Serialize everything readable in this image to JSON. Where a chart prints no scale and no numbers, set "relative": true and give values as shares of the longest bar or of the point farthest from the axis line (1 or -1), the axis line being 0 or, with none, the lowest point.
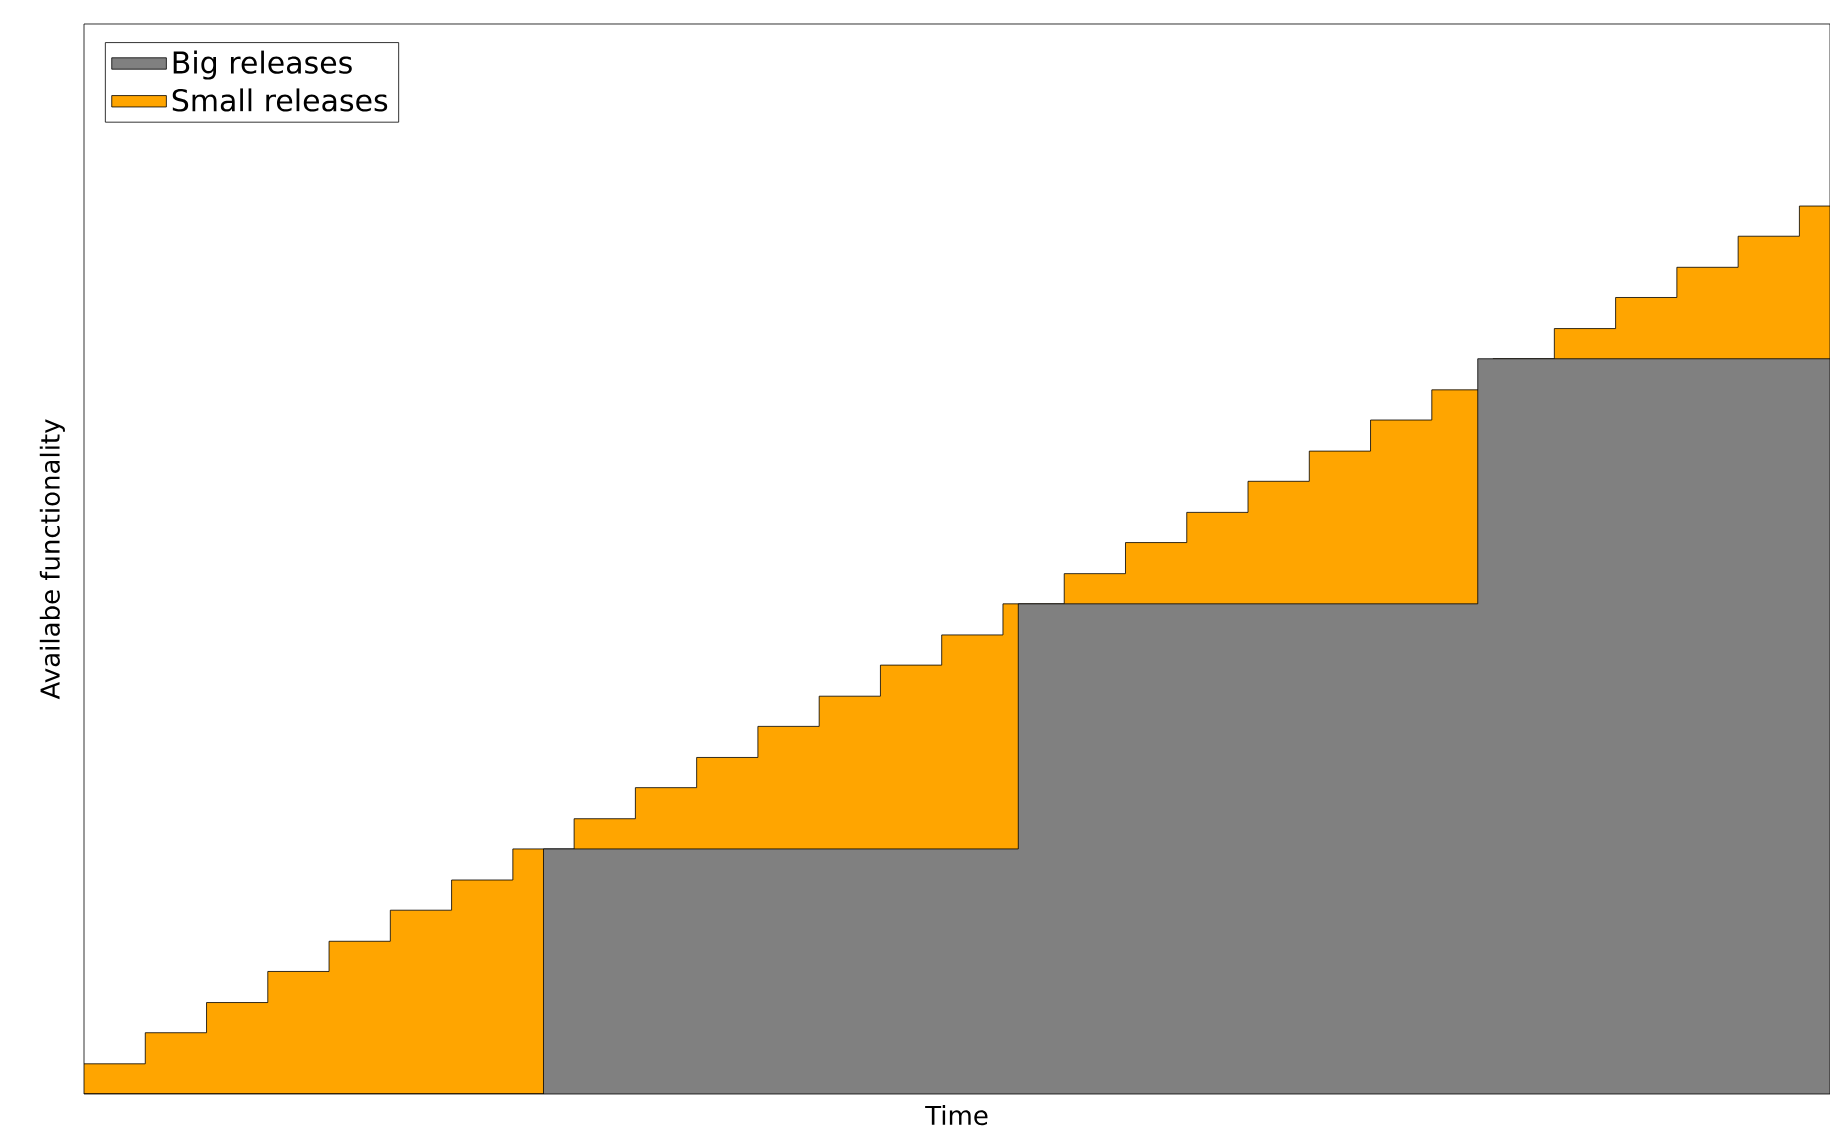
{
  "chart_data": {
    "type": "area",
    "relative": true,
    "xlabel": "Time",
    "ylabel": "Availabe functionality",
    "tick_labels": false,
    "legend": "top left",
    "categories": [
      null,
      null,
      null,
      null,
      null,
      null,
      null,
      null,
      null,
      null,
      null,
      null,
      null,
      null,
      null,
      null,
      null,
      null,
      null,
      null,
      null,
      null,
      null,
      null,
      null,
      null,
      null,
      null,
      null,
      null,
      null,
      null,
      null,
      null,
      null,
      null,
      null,
      null,
      null,
      null,
      null,
      null,
      null,
      null,
      null,
      null,
      null,
      null,
      null,
      null,
      null,
      null,
      null,
      null,
      null,
      null,
      null,
      null,
      null,
      null,
      null,
      null,
      null,
      null,
      null,
      null,
      null,
      null,
      null,
      null,
      null,
      null,
      null,
      null,
      null,
      null,
      null,
      null,
      null,
      null,
      null,
      null,
      null,
      null,
      null,
      null,
      null,
      null,
      null,
      null,
      null,
      null,
      null,
      null,
      null,
      null,
      null,
      null,
      null,
      null,
      null,
      null,
      null,
      null,
      null,
      null,
      null,
      null,
      null,
      null,
      null,
      null,
      null,
      null,
      null
    ],
    "series": [
      {
        "name": "Big releases",
        "color": "#808080",
        "values": [
          0,
          0,
          0,
          0,
          0,
          0,
          0,
          0,
          0,
          0,
          0,
          0,
          0,
          0,
          0,
          0,
          0,
          0,
          0,
          0,
          0,
          0,
          0,
          0,
          0,
          0,
          0,
          0,
          0,
          0,
          0.276,
          0.276,
          0.276,
          0.276,
          0.276,
          0.276,
          0.276,
          0.276,
          0.276,
          0.276,
          0.276,
          0.276,
          0.276,
          0.276,
          0.276,
          0.276,
          0.276,
          0.276,
          0.276,
          0.276,
          0.276,
          0.276,
          0.276,
          0.276,
          0.276,
          0.276,
          0.276,
          0.276,
          0.276,
          0.276,
          0.276,
          0.552,
          0.552,
          0.552,
          0.552,
          0.552,
          0.552,
          0.552,
          0.552,
          0.552,
          0.552,
          0.552,
          0.552,
          0.552,
          0.552,
          0.552,
          0.552,
          0.552,
          0.552,
          0.552,
          0.552,
          0.552,
          0.552,
          0.552,
          0.552,
          0.552,
          0.552,
          0.552,
          0.552,
          0.552,
          0.552,
          0.828,
          0.828,
          0.828,
          0.828,
          0.828,
          0.828,
          0.828,
          0.828,
          0.828,
          0.828,
          0.828,
          0.828,
          0.828,
          0.828,
          0.828,
          0.828,
          0.828,
          0.828,
          0.828,
          0.828,
          0.828,
          0.828,
          0.828,
          0.828
        ]
      },
      {
        "name": "Small releases",
        "color": "#ffa500",
        "values": [
          0.034,
          0.034,
          0.034,
          0.034,
          0.069,
          0.069,
          0.069,
          0.069,
          0.103,
          0.103,
          0.103,
          0.103,
          0.138,
          0.138,
          0.138,
          0.138,
          0.172,
          0.172,
          0.172,
          0.172,
          0.207,
          0.207,
          0.207,
          0.207,
          0.241,
          0.241,
          0.241,
          0.241,
          0.276,
          0.276,
          0.276,
          0.276,
          0.31,
          0.31,
          0.31,
          0.31,
          0.345,
          0.345,
          0.345,
          0.345,
          0.379,
          0.379,
          0.379,
          0.379,
          0.414,
          0.414,
          0.414,
          0.414,
          0.448,
          0.448,
          0.448,
          0.448,
          0.483,
          0.483,
          0.483,
          0.483,
          0.517,
          0.517,
          0.517,
          0.517,
          0.552,
          0.552,
          0.552,
          0.552,
          0.586,
          0.586,
          0.586,
          0.586,
          0.621,
          0.621,
          0.621,
          0.621,
          0.655,
          0.655,
          0.655,
          0.655,
          0.69,
          0.69,
          0.69,
          0.69,
          0.724,
          0.724,
          0.724,
          0.724,
          0.759,
          0.759,
          0.759,
          0.759,
          0.793,
          0.793,
          0.793,
          0.793,
          0.828,
          0.828,
          0.828,
          0.828,
          0.862,
          0.862,
          0.862,
          0.862,
          0.897,
          0.897,
          0.897,
          0.897,
          0.931,
          0.931,
          0.931,
          0.931,
          0.966,
          0.966,
          0.966,
          0.966,
          1,
          1,
          1
        ]
      }
    ]
  }
}
